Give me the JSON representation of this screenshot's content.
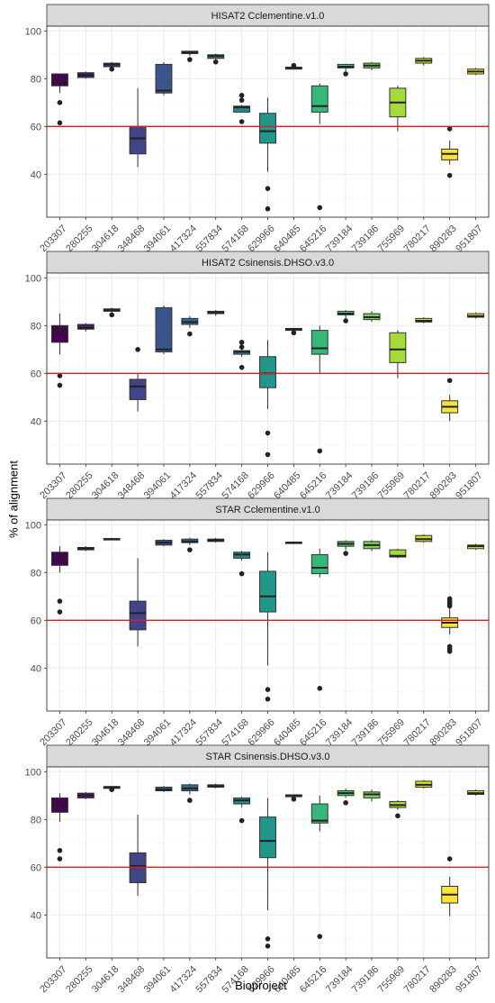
{
  "figure": {
    "ylabel": "% of alignment",
    "xlabel": "Bioproject"
  },
  "style": {
    "threshold_color": "#e41a1c",
    "grid_color": "#ebebeb",
    "strip_fill": "#d9d9d9",
    "panel_border": "#333333",
    "point_color": "#222222",
    "palette": [
      "#440154",
      "#481a6c",
      "#472f7d",
      "#414487",
      "#39568c",
      "#31688e",
      "#2a788e",
      "#23888e",
      "#1f988b",
      "#22a884",
      "#35b779",
      "#54c568",
      "#7ad151",
      "#a5db36",
      "#d2e21b",
      "#f6e43a",
      "#fde725"
    ]
  },
  "chart_data": [
    {
      "type": "box",
      "title": "HISAT2 Cclementine.v1.0",
      "categories": [
        "203307",
        "280255",
        "304618",
        "348468",
        "394061",
        "417324",
        "557834",
        "574168",
        "629966",
        "640485",
        "645216",
        "739184",
        "739186",
        "755969",
        "780217",
        "890283",
        "951807"
      ],
      "ylim": [
        22,
        102
      ],
      "yticks": [
        40,
        60,
        80,
        100
      ],
      "threshold": 60,
      "grid": true,
      "boxes": [
        {
          "min": 74,
          "q1": 77,
          "median": 79,
          "q3": 82,
          "max": 82,
          "outliers": [
            70,
            61.5
          ]
        },
        {
          "min": 80,
          "q1": 80.5,
          "median": 81.5,
          "q3": 82.5,
          "max": 83,
          "outliers": []
        },
        {
          "min": 84.5,
          "q1": 85,
          "median": 86,
          "q3": 86.5,
          "max": 87,
          "outliers": [
            84
          ]
        },
        {
          "min": 43,
          "q1": 48.5,
          "median": 55,
          "q3": 60,
          "max": 76,
          "outliers": []
        },
        {
          "min": 73,
          "q1": 74,
          "median": 75,
          "q3": 86,
          "max": 87,
          "outliers": []
        },
        {
          "min": 89.5,
          "q1": 90.5,
          "median": 91,
          "q3": 91.5,
          "max": 91.5,
          "outliers": [
            88
          ]
        },
        {
          "min": 88,
          "q1": 88.5,
          "median": 89.5,
          "q3": 90,
          "max": 90.5,
          "outliers": [
            87
          ]
        },
        {
          "min": 66,
          "q1": 66,
          "median": 68,
          "q3": 68.5,
          "max": 69,
          "outliers": [
            73,
            71,
            62
          ]
        },
        {
          "min": 41,
          "q1": 53,
          "median": 58,
          "q3": 65.5,
          "max": 72,
          "outliers": [
            34,
            25.5
          ]
        },
        {
          "min": 84,
          "q1": 84,
          "median": 84.5,
          "q3": 84.8,
          "max": 85,
          "outliers": [
            85.5
          ]
        },
        {
          "min": 61,
          "q1": 66,
          "median": 68.5,
          "q3": 77,
          "max": 78,
          "outliers": [
            26
          ]
        },
        {
          "min": 83,
          "q1": 84.5,
          "median": 85,
          "q3": 86,
          "max": 86,
          "outliers": [
            82
          ]
        },
        {
          "min": 83.5,
          "q1": 84.5,
          "median": 85.5,
          "q3": 86.5,
          "max": 87,
          "outliers": []
        },
        {
          "min": 58,
          "q1": 64,
          "median": 70,
          "q3": 76,
          "max": 77,
          "outliers": []
        },
        {
          "min": 85.5,
          "q1": 86.5,
          "median": 87.5,
          "q3": 88.5,
          "max": 89,
          "outliers": []
        },
        {
          "min": 44,
          "q1": 46,
          "median": 48.5,
          "q3": 50.5,
          "max": 54,
          "outliers": [
            59,
            39.5
          ]
        },
        {
          "min": 81.5,
          "q1": 82,
          "median": 83,
          "q3": 84,
          "max": 84.5,
          "outliers": []
        }
      ]
    },
    {
      "type": "box",
      "title": "HISAT2 Csinensis.DHSO.v3.0",
      "categories": [
        "203307",
        "280255",
        "304618",
        "348468",
        "394061",
        "417324",
        "557834",
        "574168",
        "629966",
        "640485",
        "645216",
        "739184",
        "739186",
        "755969",
        "780217",
        "890283",
        "951807"
      ],
      "ylim": [
        22,
        102
      ],
      "yticks": [
        40,
        60,
        80,
        100
      ],
      "threshold": 60,
      "grid": true,
      "boxes": [
        {
          "min": 68,
          "q1": 73,
          "median": 77.5,
          "q3": 80,
          "max": 85,
          "outliers": [
            59,
            55
          ]
        },
        {
          "min": 77.5,
          "q1": 78.5,
          "median": 79,
          "q3": 80.5,
          "max": 81,
          "outliers": []
        },
        {
          "min": 85.5,
          "q1": 86,
          "median": 86.5,
          "q3": 87,
          "max": 87.5,
          "outliers": [
            84.5
          ]
        },
        {
          "min": 44,
          "q1": 49,
          "median": 54.5,
          "q3": 57.5,
          "max": 60,
          "outliers": [
            70
          ]
        },
        {
          "min": 68,
          "q1": 69,
          "median": 70,
          "q3": 87.5,
          "max": 88.5,
          "outliers": []
        },
        {
          "min": 79,
          "q1": 80.5,
          "median": 81.5,
          "q3": 83,
          "max": 84,
          "outliers": [
            76.5
          ]
        },
        {
          "min": 84,
          "q1": 85,
          "median": 85.5,
          "q3": 86,
          "max": 86.5,
          "outliers": []
        },
        {
          "min": 67,
          "q1": 68,
          "median": 69,
          "q3": 69.5,
          "max": 70,
          "outliers": [
            73,
            71,
            62.5
          ]
        },
        {
          "min": 45,
          "q1": 54,
          "median": 60,
          "q3": 67,
          "max": 74,
          "outliers": [
            35,
            26
          ]
        },
        {
          "min": 78,
          "q1": 78,
          "median": 78.5,
          "q3": 78.8,
          "max": 79,
          "outliers": [
            77
          ]
        },
        {
          "min": 60,
          "q1": 68,
          "median": 70.5,
          "q3": 78,
          "max": 80,
          "outliers": [
            27.5
          ]
        },
        {
          "min": 82.5,
          "q1": 84.5,
          "median": 85,
          "q3": 86,
          "max": 86.5,
          "outliers": [
            82
          ]
        },
        {
          "min": 81.5,
          "q1": 82.5,
          "median": 83.5,
          "q3": 85,
          "max": 86,
          "outliers": []
        },
        {
          "min": 58,
          "q1": 64.5,
          "median": 70,
          "q3": 77,
          "max": 78,
          "outliers": []
        },
        {
          "min": 81,
          "q1": 81.5,
          "median": 82,
          "q3": 83,
          "max": 83.5,
          "outliers": []
        },
        {
          "min": 40,
          "q1": 43.5,
          "median": 46,
          "q3": 48.5,
          "max": 51,
          "outliers": [
            57
          ]
        },
        {
          "min": 83,
          "q1": 83.5,
          "median": 84,
          "q3": 85,
          "max": 85.5,
          "outliers": []
        }
      ]
    },
    {
      "type": "box",
      "title": "STAR Cclementine.v1.0",
      "categories": [
        "203307",
        "280255",
        "304618",
        "348468",
        "394061",
        "417324",
        "557834",
        "574168",
        "629966",
        "640485",
        "645216",
        "739184",
        "739186",
        "755969",
        "780217",
        "890283",
        "951807"
      ],
      "ylim": [
        22,
        102
      ],
      "yticks": [
        40,
        60,
        80,
        100
      ],
      "threshold": 60,
      "grid": true,
      "boxes": [
        {
          "min": 80,
          "q1": 83,
          "median": 86,
          "q3": 88.5,
          "max": 91,
          "outliers": [
            68,
            63.5
          ]
        },
        {
          "min": 89,
          "q1": 89.5,
          "median": 90,
          "q3": 90.5,
          "max": 91,
          "outliers": []
        },
        {
          "min": 93.5,
          "q1": 93.8,
          "median": 94,
          "q3": 94.2,
          "max": 94.5,
          "outliers": []
        },
        {
          "min": 49,
          "q1": 56,
          "median": 63,
          "q3": 68,
          "max": 86,
          "outliers": []
        },
        {
          "min": 91,
          "q1": 91.5,
          "median": 92.5,
          "q3": 93.5,
          "max": 94,
          "outliers": []
        },
        {
          "min": 91.5,
          "q1": 92.5,
          "median": 93,
          "q3": 94,
          "max": 94.5,
          "outliers": [
            89.5
          ]
        },
        {
          "min": 92.5,
          "q1": 93,
          "median": 93.5,
          "q3": 94,
          "max": 94.5,
          "outliers": []
        },
        {
          "min": 85,
          "q1": 86,
          "median": 87.5,
          "q3": 88.5,
          "max": 89,
          "outliers": [
            79.5
          ]
        },
        {
          "min": 41,
          "q1": 63.5,
          "median": 70,
          "q3": 80.5,
          "max": 88.5,
          "outliers": [
            31,
            27
          ]
        },
        {
          "min": 92,
          "q1": 92.2,
          "median": 92.5,
          "q3": 92.7,
          "max": 93,
          "outliers": []
        },
        {
          "min": 78,
          "q1": 79.5,
          "median": 82,
          "q3": 87.5,
          "max": 90,
          "outliers": [
            31.5
          ]
        },
        {
          "min": 89.5,
          "q1": 91,
          "median": 92,
          "q3": 93,
          "max": 93.5,
          "outliers": [
            88
          ]
        },
        {
          "min": 89,
          "q1": 90,
          "median": 91.5,
          "q3": 93,
          "max": 93.5,
          "outliers": []
        },
        {
          "min": 86,
          "q1": 86.5,
          "median": 87,
          "q3": 89.5,
          "max": 90,
          "outliers": []
        },
        {
          "min": 92.5,
          "q1": 93,
          "median": 94,
          "q3": 95.5,
          "max": 96,
          "outliers": []
        },
        {
          "min": 54,
          "q1": 57,
          "median": 59,
          "q3": 61,
          "max": 65,
          "outliers": [
            69,
            68,
            67,
            66,
            49,
            48,
            47
          ]
        },
        {
          "min": 89.5,
          "q1": 90,
          "median": 91,
          "q3": 91.5,
          "max": 92,
          "outliers": []
        }
      ]
    },
    {
      "type": "box",
      "title": "STAR Csinensis.DHSO.v3.0",
      "categories": [
        "203307",
        "280255",
        "304618",
        "348468",
        "394061",
        "417324",
        "557834",
        "574168",
        "629966",
        "640485",
        "645216",
        "739184",
        "739186",
        "755969",
        "780217",
        "890283",
        "951807"
      ],
      "ylim": [
        22,
        102
      ],
      "yticks": [
        40,
        60,
        80,
        100
      ],
      "threshold": 60,
      "grid": true,
      "boxes": [
        {
          "min": 79,
          "q1": 83,
          "median": 86,
          "q3": 89,
          "max": 91,
          "outliers": [
            67,
            63.5
          ]
        },
        {
          "min": 88.5,
          "q1": 89,
          "median": 90,
          "q3": 91,
          "max": 91.5,
          "outliers": []
        },
        {
          "min": 92.5,
          "q1": 93,
          "median": 93.5,
          "q3": 93.8,
          "max": 94,
          "outliers": [
            92.5
          ]
        },
        {
          "min": 48,
          "q1": 53.5,
          "median": 60.5,
          "q3": 66,
          "max": 82,
          "outliers": []
        },
        {
          "min": 91.5,
          "q1": 92,
          "median": 92.5,
          "q3": 93.5,
          "max": 94,
          "outliers": []
        },
        {
          "min": 90.5,
          "q1": 92,
          "median": 93,
          "q3": 94.5,
          "max": 95,
          "outliers": [
            88
          ]
        },
        {
          "min": 93,
          "q1": 93.5,
          "median": 94,
          "q3": 94.5,
          "max": 95,
          "outliers": []
        },
        {
          "min": 85,
          "q1": 86.5,
          "median": 88,
          "q3": 89,
          "max": 89.5,
          "outliers": [
            79.5
          ]
        },
        {
          "min": 42,
          "q1": 64,
          "median": 71,
          "q3": 81,
          "max": 89,
          "outliers": [
            30,
            27
          ]
        },
        {
          "min": 89,
          "q1": 89.5,
          "median": 90,
          "q3": 90.3,
          "max": 90.5,
          "outliers": [
            88.5
          ]
        },
        {
          "min": 75,
          "q1": 78.5,
          "median": 79.5,
          "q3": 86.5,
          "max": 90,
          "outliers": [
            31
          ]
        },
        {
          "min": 89,
          "q1": 90,
          "median": 91,
          "q3": 92,
          "max": 93,
          "outliers": [
            87
          ]
        },
        {
          "min": 87.5,
          "q1": 89,
          "median": 90.5,
          "q3": 91.5,
          "max": 92.5,
          "outliers": []
        },
        {
          "min": 84,
          "q1": 85,
          "median": 86,
          "q3": 87.5,
          "max": 88,
          "outliers": [
            81.5
          ]
        },
        {
          "min": 93,
          "q1": 93.5,
          "median": 94.5,
          "q3": 96,
          "max": 96.5,
          "outliers": []
        },
        {
          "min": 39.5,
          "q1": 45,
          "median": 48.5,
          "q3": 52,
          "max": 56,
          "outliers": [
            63.5
          ]
        },
        {
          "min": 90,
          "q1": 90.5,
          "median": 91,
          "q3": 92,
          "max": 92.5,
          "outliers": []
        }
      ]
    }
  ]
}
